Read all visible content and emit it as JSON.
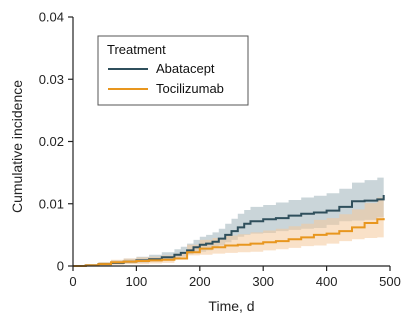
{
  "chart_data": {
    "type": "line",
    "xlabel": "Time, d",
    "ylabel": "Cumulative incidence",
    "xlim": [
      0,
      500
    ],
    "ylim": [
      0,
      0.04
    ],
    "x_ticks": [
      0,
      100,
      200,
      300,
      400,
      500
    ],
    "x_tick_labels": [
      "0",
      "100",
      "200",
      "300",
      "400",
      "500"
    ],
    "y_ticks": [
      0,
      0.01,
      0.02,
      0.03,
      0.04
    ],
    "y_tick_labels": [
      "0",
      "0.01",
      "0.02",
      "0.03",
      "0.04"
    ],
    "grid": false,
    "legend": {
      "title": "Treatment",
      "placement": "top-left",
      "entries": [
        "Abatacept",
        "Tocilizumab"
      ]
    },
    "series": [
      {
        "name": "Abatacept",
        "color": "#2f4f5c",
        "band_color": "#9fb2ba",
        "x": [
          0,
          20,
          40,
          60,
          80,
          100,
          120,
          140,
          160,
          170,
          180,
          190,
          200,
          210,
          220,
          230,
          240,
          250,
          260,
          270,
          280,
          300,
          320,
          340,
          360,
          380,
          400,
          420,
          440,
          460,
          480,
          490
        ],
        "y": [
          0,
          0.0001,
          0.0003,
          0.0005,
          0.0007,
          0.0009,
          0.0011,
          0.0014,
          0.0018,
          0.0021,
          0.0025,
          0.003,
          0.0034,
          0.0036,
          0.0039,
          0.0044,
          0.005,
          0.0056,
          0.0062,
          0.0068,
          0.0072,
          0.0075,
          0.0077,
          0.0081,
          0.0084,
          0.0086,
          0.0089,
          0.0095,
          0.0104,
          0.0105,
          0.0107,
          0.0114
        ],
        "lower": [
          0,
          0,
          0.0001,
          0.0002,
          0.0003,
          0.0004,
          0.0005,
          0.0007,
          0.001,
          0.0012,
          0.0015,
          0.0019,
          0.0022,
          0.0023,
          0.0025,
          0.0029,
          0.0033,
          0.0038,
          0.0042,
          0.0047,
          0.005,
          0.0052,
          0.0053,
          0.0056,
          0.0058,
          0.006,
          0.0061,
          0.0066,
          0.0072,
          0.0073,
          0.0074,
          0.0078
        ],
        "upper": [
          0,
          0.0003,
          0.0006,
          0.0009,
          0.0012,
          0.0015,
          0.0018,
          0.0022,
          0.0027,
          0.0031,
          0.0036,
          0.0042,
          0.0047,
          0.005,
          0.0054,
          0.006,
          0.0068,
          0.0076,
          0.0084,
          0.009,
          0.0095,
          0.0098,
          0.0102,
          0.0106,
          0.011,
          0.0113,
          0.0117,
          0.0124,
          0.0134,
          0.0138,
          0.0142,
          0.0154
        ]
      },
      {
        "name": "Tocilizumab",
        "color": "#e8961e",
        "band_color": "#f4c99a",
        "x": [
          0,
          20,
          40,
          60,
          80,
          100,
          120,
          140,
          160,
          180,
          200,
          220,
          240,
          260,
          280,
          300,
          320,
          340,
          360,
          380,
          400,
          420,
          440,
          460,
          480,
          490
        ],
        "y": [
          0,
          0.0001,
          0.0003,
          0.0006,
          0.0007,
          0.0008,
          0.0009,
          0.001,
          0.0012,
          0.0022,
          0.0028,
          0.003,
          0.0033,
          0.0034,
          0.0036,
          0.0038,
          0.004,
          0.0043,
          0.0046,
          0.005,
          0.0052,
          0.0056,
          0.0062,
          0.0069,
          0.0075,
          0.0077
        ],
        "lower": [
          0,
          0,
          0.0001,
          0.0002,
          0.0002,
          0.0003,
          0.0003,
          0.0004,
          0.0005,
          0.0012,
          0.0017,
          0.0018,
          0.002,
          0.0021,
          0.0022,
          0.0023,
          0.0025,
          0.0027,
          0.0029,
          0.0032,
          0.0033,
          0.0036,
          0.004,
          0.0043,
          0.0045,
          0.0046
        ],
        "upper": [
          0,
          0.0003,
          0.0006,
          0.001,
          0.0012,
          0.0014,
          0.0015,
          0.0017,
          0.002,
          0.0034,
          0.0042,
          0.0045,
          0.0049,
          0.0051,
          0.0054,
          0.0057,
          0.006,
          0.0064,
          0.0068,
          0.0074,
          0.0077,
          0.0083,
          0.0091,
          0.0101,
          0.011,
          0.0113
        ]
      }
    ]
  }
}
